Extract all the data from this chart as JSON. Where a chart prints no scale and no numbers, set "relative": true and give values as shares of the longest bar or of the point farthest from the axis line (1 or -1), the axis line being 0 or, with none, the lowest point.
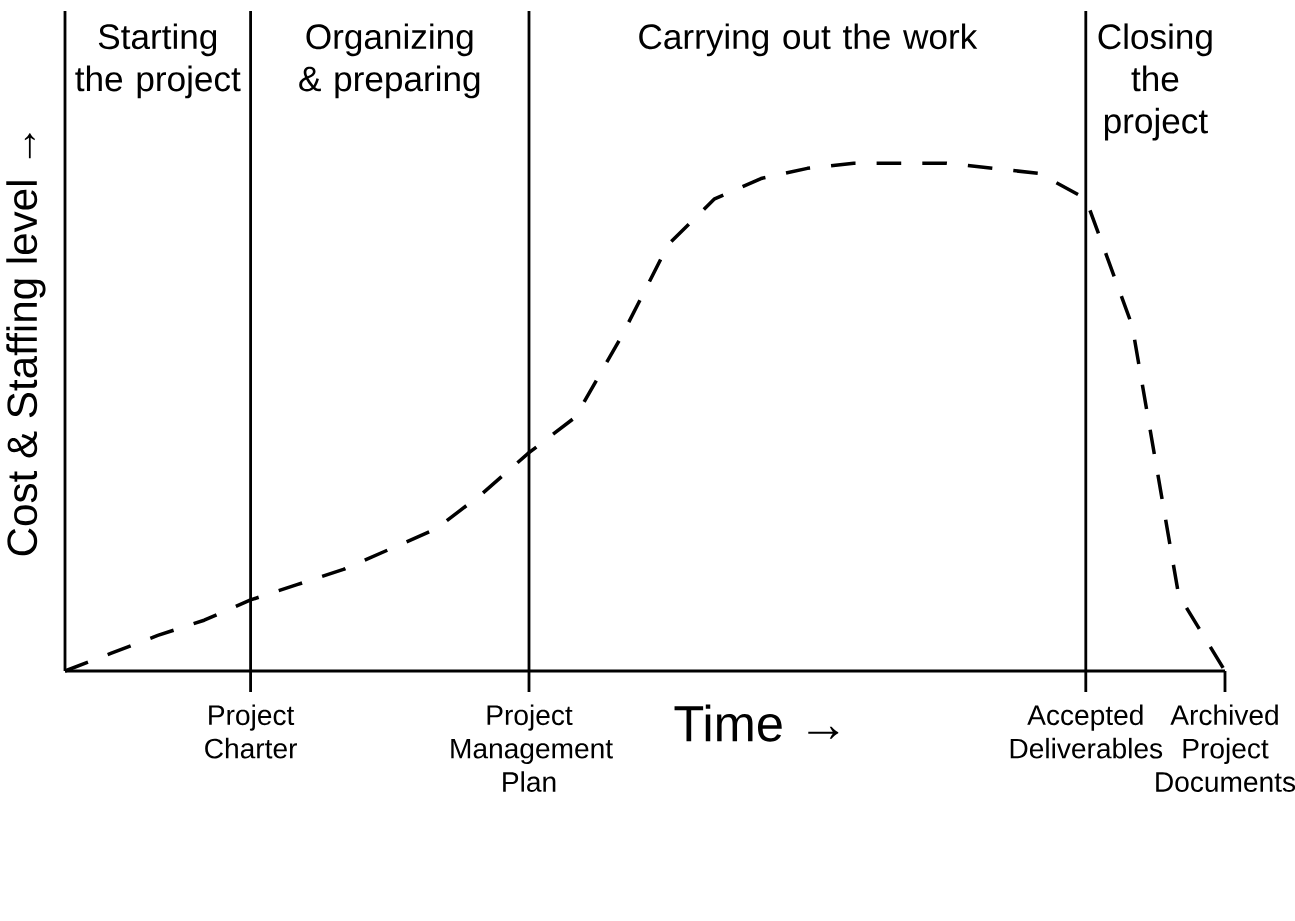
{
  "chart_data": {
    "type": "line",
    "relative": true,
    "xlabel": "Time →",
    "ylabel": "Cost & Staffing level →",
    "line_style": "dashed",
    "marker": "none",
    "categories": [
      null,
      null,
      null,
      null,
      "Project Charter",
      null,
      null,
      null,
      null,
      null,
      "Project Management Plan",
      null,
      null,
      null,
      null,
      null,
      null,
      null,
      null,
      null,
      null,
      null,
      "Accepted Deliverables",
      null,
      null,
      "Archived Project Documents"
    ],
    "series": [
      {
        "color": "#000000",
        "values": [
          0,
          0.035,
          0.07,
          0.1,
          0.14,
          0.17,
          0.2,
          0.24,
          0.28,
          0.35,
          0.43,
          0.5,
          0.66,
          0.84,
          0.93,
          0.97,
          0.99,
          1,
          1,
          1,
          0.99,
          0.98,
          0.93,
          0.68,
          0.15,
          0
        ]
      }
    ],
    "ref_lines": [
      {
        "axis": "x",
        "value": "Project Charter"
      },
      {
        "axis": "x",
        "value": "Project Management Plan"
      },
      {
        "axis": "x",
        "value": "Accepted Deliverables"
      }
    ],
    "annotations": [
      "Starting the project",
      "Organizing & preparing",
      "Carrying out the work",
      "Closing the project"
    ]
  }
}
